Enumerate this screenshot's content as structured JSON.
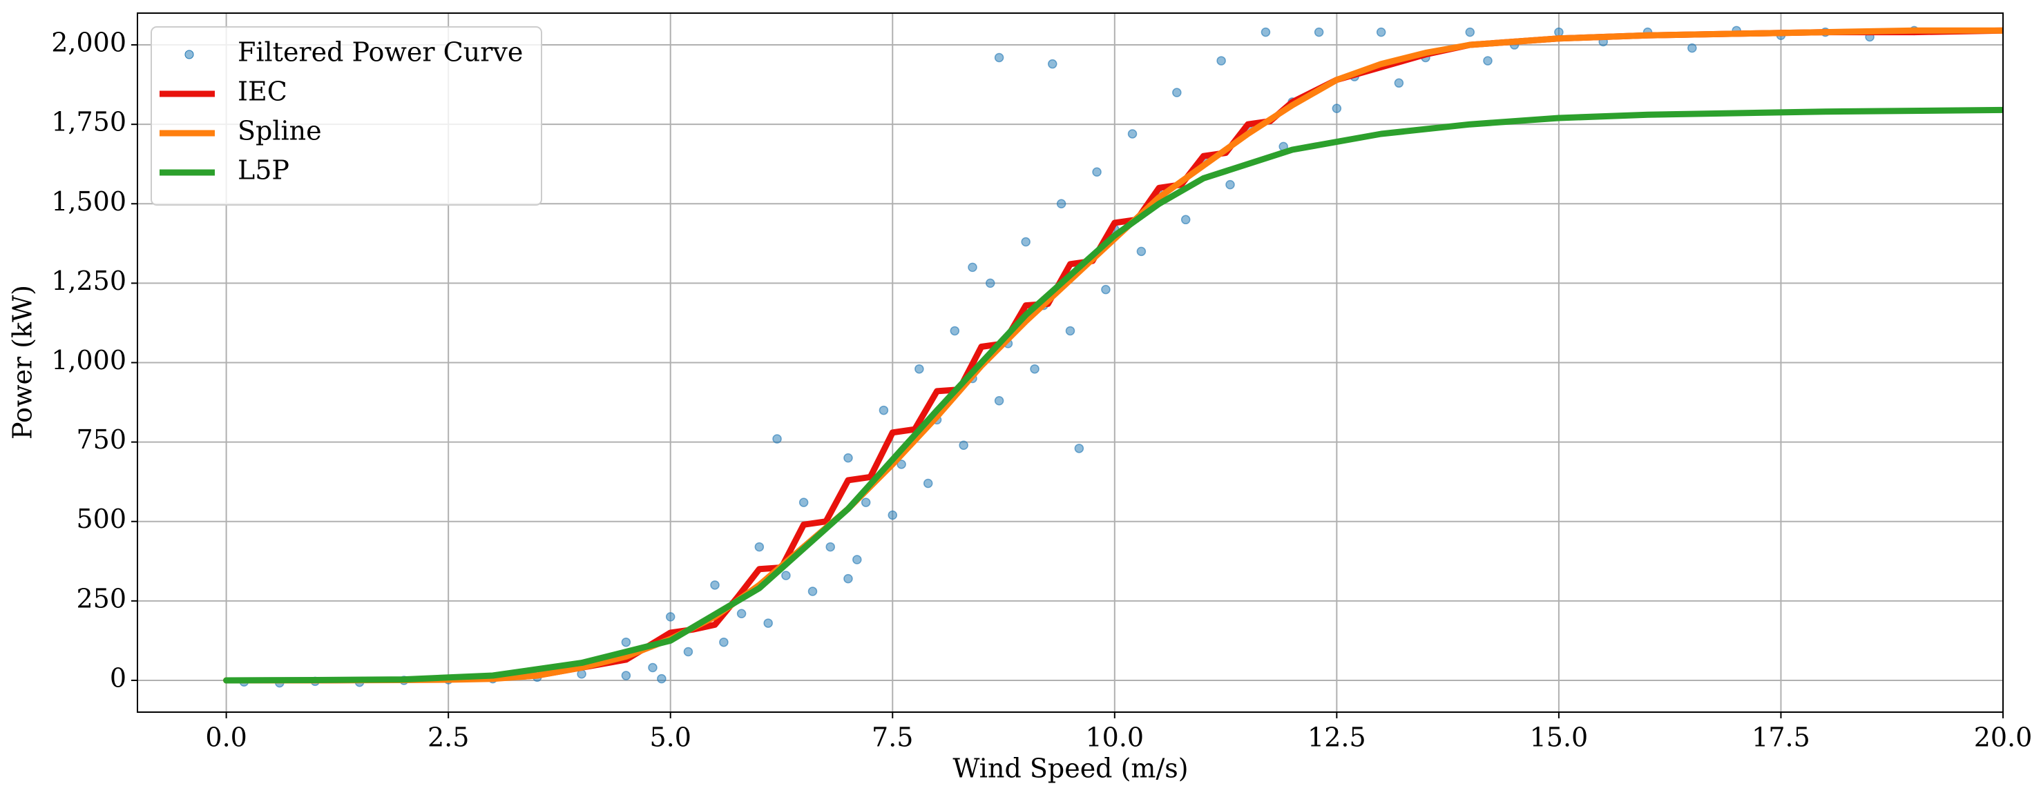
{
  "chart_data": {
    "type": "scatter",
    "xlabel": "Wind Speed (m/s)",
    "ylabel": "Power (kW)",
    "xlim": [
      -1,
      20
    ],
    "ylim": [
      -100,
      2100
    ],
    "xticks": [
      {
        "value": 0,
        "label": "0.0"
      },
      2.5,
      {
        "value": 5,
        "label": "5.0"
      },
      7.5,
      {
        "value": 10,
        "label": "10.0"
      },
      12.5,
      {
        "value": 15,
        "label": "15.0"
      },
      17.5,
      {
        "value": 20,
        "label": "20.0"
      }
    ],
    "yticks": [
      0,
      250,
      500,
      750,
      {
        "value": 1000,
        "label": "1,000"
      },
      {
        "value": 1250,
        "label": "1,250"
      },
      {
        "value": 1500,
        "label": "1,500"
      },
      {
        "value": 1750,
        "label": "1,750"
      },
      {
        "value": 2000,
        "label": "2,000"
      }
    ],
    "grid": true,
    "legend": "upper left",
    "series": [
      {
        "name": "Filtered Power Curve",
        "type": "scatter",
        "color": "#1f77b4",
        "x": [
          0.2,
          0.6,
          1.0,
          1.5,
          2.0,
          2.5,
          3.0,
          3.5,
          4.0,
          4.5,
          4.9,
          4.5,
          4.8,
          5.0,
          5.2,
          5.5,
          5.6,
          5.8,
          6.0,
          6.1,
          6.3,
          6.5,
          6.6,
          6.8,
          7.0,
          7.1,
          7.2,
          7.4,
          7.5,
          7.6,
          7.8,
          7.9,
          8.0,
          8.2,
          8.3,
          8.4,
          8.6,
          8.7,
          8.8,
          9.0,
          9.1,
          9.2,
          9.4,
          9.5,
          9.6,
          9.8,
          9.9,
          10.0,
          10.2,
          10.3,
          10.5,
          10.7,
          10.8,
          11.0,
          11.2,
          11.3,
          11.5,
          11.7,
          11.9,
          12.0,
          12.3,
          12.5,
          12.7,
          13.0,
          13.2,
          13.5,
          14.0,
          14.2,
          14.5,
          15.0,
          15.5,
          16.0,
          16.5,
          17.0,
          17.5,
          18.0,
          18.5,
          19.0,
          8.7,
          9.3,
          6.2,
          7.0,
          8.4,
          9.6
        ],
        "values": [
          -5,
          -8,
          -3,
          -6,
          0,
          2,
          5,
          10,
          20,
          15,
          5,
          120,
          40,
          200,
          90,
          300,
          120,
          210,
          420,
          180,
          330,
          560,
          280,
          420,
          700,
          380,
          560,
          850,
          520,
          680,
          980,
          620,
          820,
          1100,
          740,
          950,
          1250,
          880,
          1060,
          1380,
          980,
          1180,
          1500,
          1100,
          1300,
          1600,
          1230,
          1420,
          1720,
          1350,
          1530,
          1850,
          1450,
          1640,
          1950,
          1560,
          1740,
          2040,
          1680,
          1820,
          2040,
          1800,
          1900,
          2040,
          1880,
          1960,
          2040,
          1950,
          2000,
          2040,
          2010,
          2040,
          1990,
          2045,
          2030,
          2040,
          2025,
          2045,
          1960,
          1940,
          760,
          320,
          1300,
          730
        ]
      },
      {
        "name": "IEC",
        "type": "line",
        "color": "#e8120c",
        "x": [
          0,
          1,
          2,
          3,
          3.5,
          4,
          4.5,
          5,
          5.25,
          5.5,
          5.75,
          6,
          6.25,
          6.5,
          6.75,
          7,
          7.25,
          7.5,
          7.75,
          8,
          8.25,
          8.5,
          8.75,
          9,
          9.25,
          9.5,
          9.75,
          10,
          10.25,
          10.5,
          10.75,
          11,
          11.25,
          11.5,
          11.75,
          12,
          12.5,
          13,
          13.5,
          14,
          15,
          16,
          17,
          18,
          19,
          20
        ],
        "values": [
          0,
          0,
          2,
          6,
          15,
          40,
          65,
          150,
          160,
          175,
          260,
          350,
          355,
          490,
          500,
          630,
          640,
          780,
          790,
          910,
          915,
          1050,
          1060,
          1180,
          1185,
          1310,
          1320,
          1440,
          1450,
          1550,
          1560,
          1650,
          1660,
          1750,
          1760,
          1820,
          1890,
          1930,
          1970,
          2000,
          2020,
          2030,
          2035,
          2040,
          2040,
          2045
        ]
      },
      {
        "name": "Spline",
        "type": "line",
        "color": "#ff7f0e",
        "x": [
          0,
          1,
          2,
          2.5,
          3,
          3.5,
          4,
          4.5,
          5,
          5.5,
          6,
          6.5,
          7,
          7.5,
          8,
          8.5,
          9,
          9.5,
          10,
          10.5,
          11,
          11.5,
          12,
          12.5,
          13,
          13.5,
          14,
          15,
          16,
          17,
          18,
          19,
          20
        ],
        "values": [
          0,
          0,
          1,
          2,
          5,
          15,
          40,
          75,
          130,
          200,
          300,
          420,
          540,
          680,
          830,
          990,
          1130,
          1260,
          1390,
          1520,
          1620,
          1720,
          1810,
          1890,
          1940,
          1975,
          2000,
          2020,
          2030,
          2035,
          2040,
          2045,
          2045
        ]
      },
      {
        "name": "L5P",
        "type": "line",
        "color": "#2ca02c",
        "x": [
          0,
          1,
          2,
          3,
          4,
          5,
          6,
          7,
          8,
          9,
          10,
          10.5,
          11,
          12,
          13,
          14,
          15,
          16,
          18,
          20
        ],
        "values": [
          0,
          1,
          3,
          15,
          55,
          125,
          290,
          540,
          850,
          1150,
          1400,
          1500,
          1580,
          1670,
          1720,
          1750,
          1770,
          1780,
          1790,
          1795
        ]
      }
    ]
  }
}
